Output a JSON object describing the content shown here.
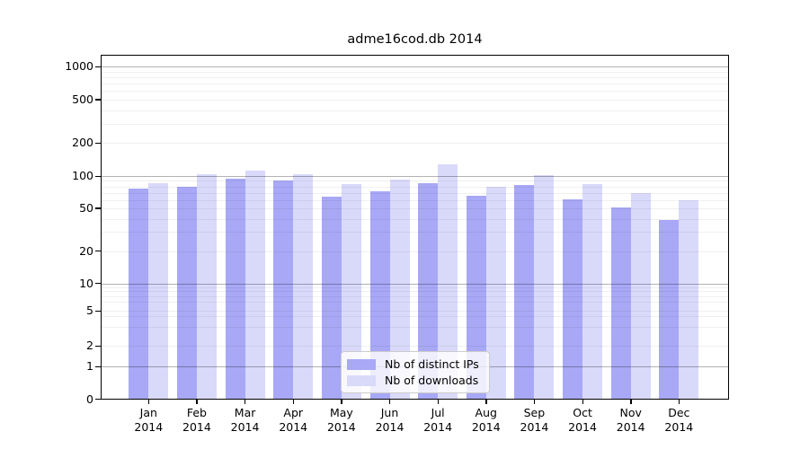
{
  "title": "adme16cod.db 2014",
  "chart_data": {
    "type": "bar",
    "title": "adme16cod.db 2014",
    "categories": [
      "Jan",
      "Feb",
      "Mar",
      "Apr",
      "May",
      "Jun",
      "Jul",
      "Aug",
      "Sep",
      "Oct",
      "Nov",
      "Dec"
    ],
    "x_tick_second_line": "2014",
    "series": [
      {
        "name": "Nb of distinct IPs",
        "color": "#a8a8f6",
        "values": [
          77,
          80,
          95,
          91,
          64,
          72,
          86,
          66,
          83,
          61,
          51,
          39
        ]
      },
      {
        "name": "Nb of downloads",
        "color": "#d9d9fa",
        "values": [
          85,
          103,
          113,
          104,
          84,
          92,
          127,
          79,
          101,
          84,
          70,
          59
        ]
      }
    ],
    "yscale": "symlog",
    "yticks": [
      0,
      1,
      2,
      5,
      10,
      20,
      50,
      100,
      200,
      500,
      1000
    ],
    "ylim": [
      0,
      1300
    ],
    "xlabel": "",
    "ylabel": "",
    "grid": true,
    "legend_position": "lower center"
  },
  "colors": {
    "background": "#ffffff",
    "axis": "#000000",
    "major_gridline": "rgba(0,0,0,0.30)",
    "minor_gridline": "rgba(0,0,0,0.06)",
    "legend_border": "#cccccc",
    "legend_background": "rgba(255,255,255,0.8)"
  }
}
